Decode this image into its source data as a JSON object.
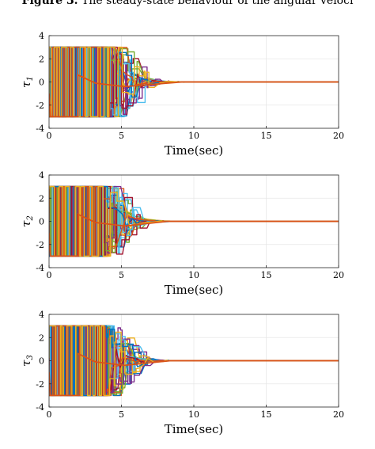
{
  "caption": {
    "label": "Figure 3.",
    "text": "The steady-state behaviour of the angular veloci"
  },
  "colors": {
    "series": [
      "#0072BD",
      "#D95319",
      "#EDB120",
      "#7E2F8E",
      "#77AC30",
      "#4DBEEE",
      "#A2142F"
    ],
    "grid": "#e6e6e6",
    "axis": "#262626"
  },
  "chart_data": [
    {
      "type": "line",
      "ylabel": "τ1",
      "ylabel_main": "τ",
      "ylabel_sub": "1",
      "xlabel": "Time(sec)",
      "xlim": [
        0,
        20
      ],
      "ylim": [
        -4,
        4
      ],
      "xticks": [
        0,
        5,
        10,
        15,
        20
      ],
      "yticks": [
        4,
        2,
        0,
        -2,
        -4
      ],
      "xtick_labels": [
        "0",
        "5",
        "10",
        "15",
        "20"
      ],
      "ytick_labels": [
        "4",
        "2",
        "0",
        "-2",
        "-4"
      ],
      "grid": true,
      "saturation": 3,
      "switching_end": 7.6,
      "settling_time": 9.2,
      "steady_state": 0,
      "series_count": 24,
      "seed": 11
    },
    {
      "type": "line",
      "ylabel": "τ2",
      "ylabel_main": "τ",
      "ylabel_sub": "2",
      "xlabel": "Time(sec)",
      "xlim": [
        0,
        20
      ],
      "ylim": [
        -4,
        4
      ],
      "xticks": [
        0,
        5,
        10,
        15,
        20
      ],
      "yticks": [
        4,
        2,
        0,
        -2,
        -4
      ],
      "xtick_labels": [
        "0",
        "5",
        "10",
        "15",
        "20"
      ],
      "ytick_labels": [
        "4",
        "2",
        "0",
        "-2",
        "-4"
      ],
      "grid": true,
      "saturation": 3,
      "switching_end": 6.8,
      "settling_time": 8.2,
      "steady_state": 0,
      "series_count": 24,
      "seed": 23
    },
    {
      "type": "line",
      "ylabel": "τ3",
      "ylabel_main": "τ",
      "ylabel_sub": "3",
      "xlabel": "Time(sec)",
      "xlim": [
        0,
        20
      ],
      "ylim": [
        -4,
        4
      ],
      "xticks": [
        0,
        5,
        10,
        15,
        20
      ],
      "yticks": [
        4,
        2,
        0,
        -2,
        -4
      ],
      "xtick_labels": [
        "0",
        "5",
        "10",
        "15",
        "20"
      ],
      "ytick_labels": [
        "4",
        "2",
        "0",
        "-2",
        "-4"
      ],
      "grid": true,
      "saturation": 3,
      "switching_end": 7.0,
      "settling_time": 8.4,
      "steady_state": 0,
      "series_count": 24,
      "seed": 37
    }
  ]
}
